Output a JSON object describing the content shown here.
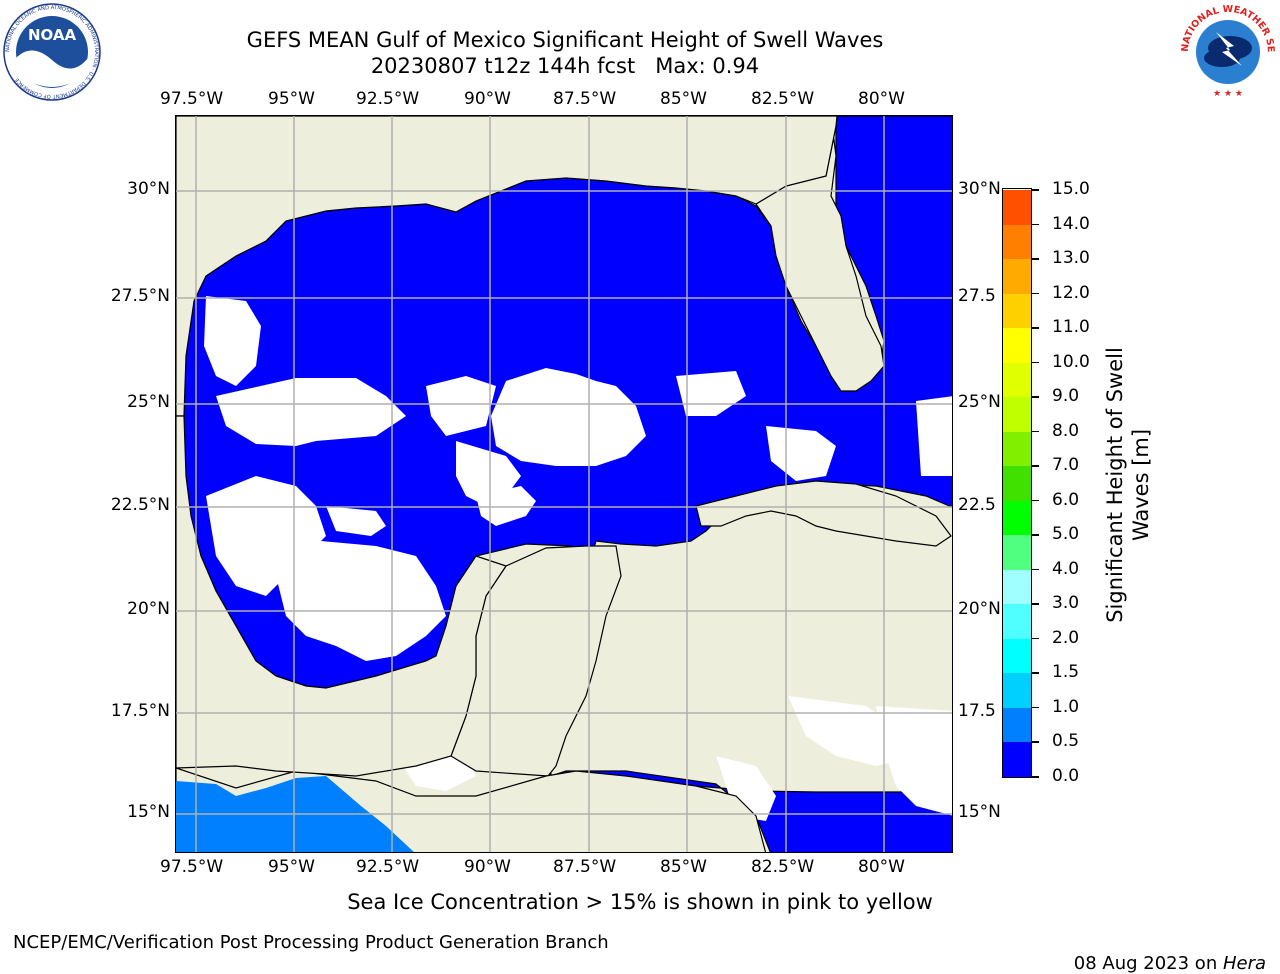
{
  "title": {
    "line1": "GEFS MEAN Gulf of Mexico Significant Height of Swell Waves",
    "line2": "20230807 t12z 144h fcst   Max: 0.94"
  },
  "logos": {
    "noaa": {
      "text": "NOAA",
      "ring_text": "NATIONAL OCEANIC AND ATMOSPHERIC ADMINISTRATION · U.S. DEPARTMENT OF COMMERCE"
    },
    "nws": {
      "ring_text": "NATIONAL WEATHER SERVICE"
    }
  },
  "axes": {
    "lon_labels": [
      "97.5°W",
      "95°W",
      "92.5°W",
      "90°W",
      "87.5°W",
      "85°W",
      "82.5°W",
      "80°W"
    ],
    "lat_labels_left": [
      "30°N",
      "27.5°N",
      "25°N",
      "22.5°N",
      "20°N",
      "17.5°N",
      "15°N"
    ],
    "lat_labels_right": [
      "30°N",
      "27.5",
      "25°N",
      "22.5",
      "20°N",
      "17.5",
      "15°N"
    ]
  },
  "colorbar": {
    "label": "Significant Height of Swell\nWaves [m]",
    "ticks": [
      "15.0",
      "14.0",
      "13.0",
      "12.0",
      "11.0",
      "10.0",
      "9.0",
      "8.0",
      "7.0",
      "6.0",
      "5.0",
      "4.0",
      "3.0",
      "2.0",
      "1.5",
      "1.0",
      "0.5",
      "0.0"
    ],
    "colors_bottom_to_top": [
      "#0000ff",
      "#0080ff",
      "#00d0ff",
      "#00ffff",
      "#50ffff",
      "#a0ffff",
      "#50ff80",
      "#00ff00",
      "#40e000",
      "#80f000",
      "#c0ff00",
      "#e0ff00",
      "#ffff00",
      "#ffd000",
      "#ffaa00",
      "#ff8000",
      "#ff5000",
      "#ff2000",
      "#ff0000"
    ]
  },
  "colors": {
    "land": "#eeeedc",
    "ocean_low": "#0000ff",
    "ocean_mid": "#0080ff",
    "gridline": "#b0b0b0"
  },
  "note": "Sea Ice Concentration > 15% is shown in pink to yellow",
  "footer": {
    "left": "NCEP/EMC/Verification Post Processing Product Generation Branch",
    "right_date": "08 Aug 2023 on ",
    "right_host": "Hera"
  }
}
